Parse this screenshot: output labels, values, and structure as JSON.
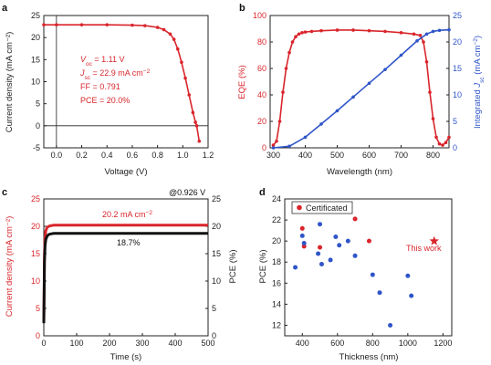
{
  "colors": {
    "red": "#d9252b",
    "blue": "#2f55c8",
    "black": "#111111"
  },
  "chart_data": [
    {
      "panel": "a",
      "type": "line",
      "xlabel": "Voltage (V)",
      "ylabel": "Current density (mA cm⁻²)",
      "xlim": [
        -0.1,
        1.2
      ],
      "ylim": [
        -5,
        25
      ],
      "xticks": [
        0.0,
        0.2,
        0.4,
        0.6,
        0.8,
        1.0,
        1.2
      ],
      "xtick_labels": [
        "0.0",
        "0.2",
        "0.4",
        "0.6",
        "0.8",
        "1.0",
        "1.2"
      ],
      "yticks": [
        -5,
        0,
        5,
        10,
        15,
        20,
        25
      ],
      "ytick_labels": [
        "-5",
        "0",
        "5",
        "10",
        "15",
        "20",
        "25"
      ],
      "grid": false,
      "series": [
        {
          "color": "#d9252b",
          "x": [
            -0.1,
            0.0,
            0.2,
            0.4,
            0.6,
            0.7,
            0.8,
            0.85,
            0.9,
            0.93,
            0.96,
            0.99,
            1.02,
            1.05,
            1.08,
            1.1,
            1.11,
            1.13
          ],
          "y": [
            22.9,
            22.9,
            22.9,
            22.9,
            22.8,
            22.7,
            22.3,
            21.8,
            20.8,
            19.6,
            17.4,
            14.4,
            10.8,
            7.0,
            3.0,
            0.8,
            0.0,
            -3.5
          ]
        }
      ],
      "annotations": [
        {
          "id": "voc",
          "text": "Voc = 1.11 V"
        },
        {
          "id": "jsc",
          "text": "Jsc = 22.9 mA cm⁻²"
        },
        {
          "id": "ff",
          "text": "FF = 0.791"
        },
        {
          "id": "pce",
          "text": "PCE = 20.0%"
        }
      ]
    },
    {
      "panel": "b",
      "type": "line",
      "xlabel": "Wavelength (nm)",
      "ylabel": "EQE (%)",
      "y2label": "Integrated Jsc (mA cm⁻²)",
      "xlim": [
        290,
        850
      ],
      "ylim": [
        0,
        100
      ],
      "y2lim": [
        0,
        25
      ],
      "xticks": [
        300,
        400,
        500,
        600,
        700,
        800
      ],
      "xtick_labels": [
        "300",
        "400",
        "500",
        "600",
        "700",
        "800"
      ],
      "yticks": [
        0,
        20,
        40,
        60,
        80,
        100
      ],
      "ytick_labels": [
        "0",
        "20",
        "40",
        "60",
        "80",
        "100"
      ],
      "y2ticks": [
        0,
        5,
        10,
        15,
        20,
        25
      ],
      "y2tick_labels": [
        "0",
        "5",
        "10",
        "15",
        "20",
        "25"
      ],
      "grid": false,
      "series": [
        {
          "color": "#d9252b",
          "axis": "left",
          "x": [
            300,
            310,
            320,
            330,
            340,
            350,
            360,
            370,
            380,
            390,
            400,
            420,
            450,
            500,
            550,
            600,
            650,
            700,
            740,
            760,
            770,
            780,
            790,
            800,
            810,
            820,
            830,
            840,
            850
          ],
          "y": [
            2,
            5,
            20,
            42,
            60,
            72,
            80,
            84,
            86,
            87,
            87.5,
            88,
            88.5,
            89,
            89,
            88.5,
            88,
            87,
            86,
            85,
            80,
            65,
            42,
            22,
            8,
            3,
            2,
            4,
            8
          ]
        },
        {
          "color": "#2f55c8",
          "axis": "right",
          "x": [
            300,
            350,
            400,
            450,
            500,
            550,
            600,
            650,
            700,
            750,
            780,
            800,
            820,
            850
          ],
          "y": [
            0,
            0.3,
            2.0,
            4.5,
            7.0,
            9.6,
            12.2,
            14.8,
            17.5,
            20.2,
            21.5,
            22.0,
            22.2,
            22.3
          ]
        }
      ]
    },
    {
      "panel": "c",
      "type": "line",
      "xlabel": "Time (s)",
      "ylabel": "Current density (mA cm⁻²)",
      "y2label": "PCE (%)",
      "xlim": [
        0,
        500
      ],
      "ylim": [
        0,
        25
      ],
      "y2lim": [
        0,
        25
      ],
      "xticks": [
        0,
        100,
        200,
        300,
        400,
        500
      ],
      "xtick_labels": [
        "0",
        "100",
        "200",
        "300",
        "400",
        "500"
      ],
      "yticks": [
        0,
        5,
        10,
        15,
        20,
        25
      ],
      "ytick_labels": [
        "0",
        "5",
        "10",
        "15",
        "20",
        "25"
      ],
      "y2ticks": [
        0,
        5,
        10,
        15,
        20,
        25
      ],
      "y2tick_labels": [
        "0",
        "5",
        "10",
        "15",
        "20",
        "25"
      ],
      "grid": false,
      "series": [
        {
          "color": "#d9252b",
          "axis": "left",
          "x": [
            0,
            1,
            2,
            4,
            6,
            10,
            15,
            20,
            30,
            50,
            100,
            200,
            300,
            400,
            500
          ],
          "y": [
            2.5,
            9,
            15,
            18,
            19.2,
            19.8,
            20.0,
            20.1,
            20.2,
            20.2,
            20.2,
            20.2,
            20.2,
            20.2,
            20.2
          ]
        },
        {
          "color": "#111111",
          "axis": "right",
          "x": [
            0,
            1,
            2,
            4,
            6,
            10,
            15,
            20,
            30,
            50,
            100,
            200,
            300,
            400,
            500
          ],
          "y": [
            2.3,
            8,
            13.5,
            16.5,
            17.6,
            18.2,
            18.5,
            18.6,
            18.7,
            18.7,
            18.7,
            18.7,
            18.7,
            18.7,
            18.7
          ]
        }
      ],
      "annotations": [
        {
          "id": "jlabel",
          "text": "20.2 mA cm⁻²"
        },
        {
          "id": "pcelabel",
          "text": "18.7%"
        },
        {
          "id": "bias",
          "text": "@0.926 V"
        }
      ]
    },
    {
      "panel": "d",
      "type": "scatter",
      "xlabel": "Thickness (nm)",
      "ylabel": "PCE (%)",
      "xlim": [
        300,
        1250
      ],
      "ylim": [
        11,
        24
      ],
      "xticks": [
        400,
        600,
        800,
        1000,
        1200
      ],
      "xtick_labels": [
        "400",
        "600",
        "800",
        "1000",
        "1200"
      ],
      "yticks": [
        12,
        14,
        16,
        18,
        20,
        22,
        24
      ],
      "ytick_labels": [
        "12",
        "14",
        "16",
        "18",
        "20",
        "22",
        "24"
      ],
      "grid": false,
      "legend": {
        "placement": "top-left",
        "entries": [
          "Certificated"
        ]
      },
      "series": [
        {
          "name": "Certificated",
          "color": "#d9252b",
          "marker": "circle",
          "x": [
            400,
            410,
            500,
            700,
            780
          ],
          "y": [
            21.2,
            19.5,
            19.4,
            22.1,
            20.0
          ]
        },
        {
          "color": "#2f55c8",
          "marker": "circle",
          "x": [
            360,
            400,
            410,
            490,
            500,
            510,
            560,
            590,
            610,
            660,
            700,
            800,
            840,
            900,
            1000,
            1020
          ],
          "y": [
            17.5,
            20.5,
            19.8,
            18.8,
            21.6,
            17.8,
            18.2,
            20.4,
            19.6,
            20.0,
            18.6,
            16.8,
            15.1,
            12.0,
            16.7,
            14.8
          ]
        },
        {
          "name": "This work",
          "color": "#d9252b",
          "marker": "star",
          "x": [
            1150
          ],
          "y": [
            20.0
          ]
        }
      ],
      "annotations": [
        {
          "id": "thiswork",
          "text": "This work"
        }
      ]
    }
  ]
}
